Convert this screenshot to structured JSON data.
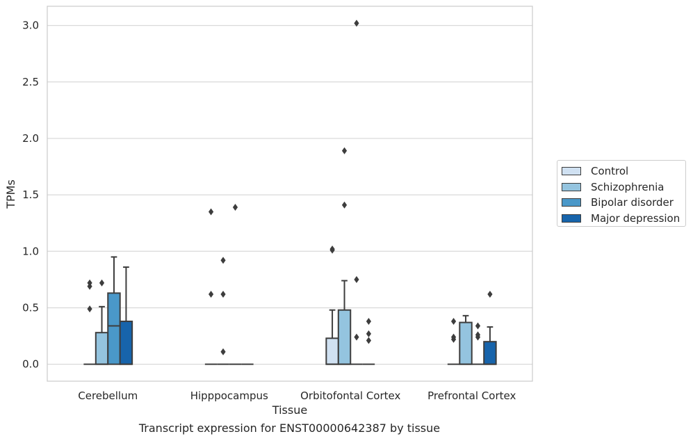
{
  "chart_data": {
    "type": "box",
    "title": "",
    "xlabel": "Tissue",
    "ylabel": "TPMs",
    "ylim": [
      -0.15,
      3.17
    ],
    "yticks": [
      0.0,
      0.5,
      1.0,
      1.5,
      2.0,
      2.5,
      3.0
    ],
    "ytick_labels": [
      "0.0",
      "0.5",
      "1.0",
      "1.5",
      "2.0",
      "2.5",
      "3.0"
    ],
    "grid": "horizontal",
    "legend_position": "right",
    "categories": [
      "Cerebellum",
      "Hipppocampus",
      "Orbitofontal Cortex",
      "Prefrontal Cortex"
    ],
    "series": [
      {
        "name": "Control",
        "color": "#d0e1f2",
        "boxes": [
          {
            "q1": 0.0,
            "median": 0.0,
            "q3": 0.0,
            "whisker_low": 0.0,
            "whisker_high": 0.0,
            "outliers": [
              0.49,
              0.69,
              0.72
            ]
          },
          {
            "q1": 0.0,
            "median": 0.0,
            "q3": 0.0,
            "whisker_low": 0.0,
            "whisker_high": 0.0,
            "outliers": [
              0.62,
              1.35
            ]
          },
          {
            "q1": 0.0,
            "median": 0.0,
            "q3": 0.23,
            "whisker_low": 0.0,
            "whisker_high": 0.48,
            "outliers": [
              1.01,
              1.02
            ]
          },
          {
            "q1": 0.0,
            "median": 0.0,
            "q3": 0.0,
            "whisker_low": 0.0,
            "whisker_high": 0.0,
            "outliers": [
              0.22,
              0.24,
              0.38
            ]
          }
        ]
      },
      {
        "name": "Schizophrenia",
        "color": "#94c4df",
        "boxes": [
          {
            "q1": 0.0,
            "median": 0.0,
            "q3": 0.28,
            "whisker_low": 0.0,
            "whisker_high": 0.51,
            "outliers": [
              0.72
            ]
          },
          {
            "q1": 0.0,
            "median": 0.0,
            "q3": 0.0,
            "whisker_low": 0.0,
            "whisker_high": 0.0,
            "outliers": [
              0.11,
              0.62,
              0.92
            ]
          },
          {
            "q1": 0.0,
            "median": 0.0,
            "q3": 0.48,
            "whisker_low": 0.0,
            "whisker_high": 0.74,
            "outliers": [
              1.41,
              1.89
            ]
          },
          {
            "q1": 0.0,
            "median": 0.0,
            "q3": 0.37,
            "whisker_low": 0.0,
            "whisker_high": 0.43,
            "outliers": []
          }
        ]
      },
      {
        "name": "Bipolar disorder",
        "color": "#4a98c9",
        "boxes": [
          {
            "q1": 0.0,
            "median": 0.34,
            "q3": 0.63,
            "whisker_low": 0.0,
            "whisker_high": 0.95,
            "outliers": []
          },
          {
            "q1": 0.0,
            "median": 0.0,
            "q3": 0.0,
            "whisker_low": 0.0,
            "whisker_high": 0.0,
            "outliers": [
              1.39
            ]
          },
          {
            "q1": 0.0,
            "median": 0.0,
            "q3": 0.0,
            "whisker_low": 0.0,
            "whisker_high": 0.0,
            "outliers": [
              0.24,
              0.75,
              3.02
            ]
          },
          {
            "q1": 0.0,
            "median": 0.0,
            "q3": 0.0,
            "whisker_low": 0.0,
            "whisker_high": 0.0,
            "outliers": [
              0.24,
              0.26,
              0.34
            ]
          }
        ]
      },
      {
        "name": "Major depression",
        "color": "#1764ab",
        "boxes": [
          {
            "q1": 0.0,
            "median": 0.0,
            "q3": 0.38,
            "whisker_low": 0.0,
            "whisker_high": 0.86,
            "outliers": []
          },
          {
            "q1": 0.0,
            "median": 0.0,
            "q3": 0.0,
            "whisker_low": 0.0,
            "whisker_high": 0.0,
            "outliers": []
          },
          {
            "q1": 0.0,
            "median": 0.0,
            "q3": 0.0,
            "whisker_low": 0.0,
            "whisker_high": 0.0,
            "outliers": [
              0.21,
              0.27,
              0.38
            ]
          },
          {
            "q1": 0.0,
            "median": 0.0,
            "q3": 0.2,
            "whisker_low": 0.0,
            "whisker_high": 0.33,
            "outliers": [
              0.62
            ]
          }
        ]
      }
    ]
  },
  "caption": "Transcript expression for ENST00000642387 by tissue"
}
